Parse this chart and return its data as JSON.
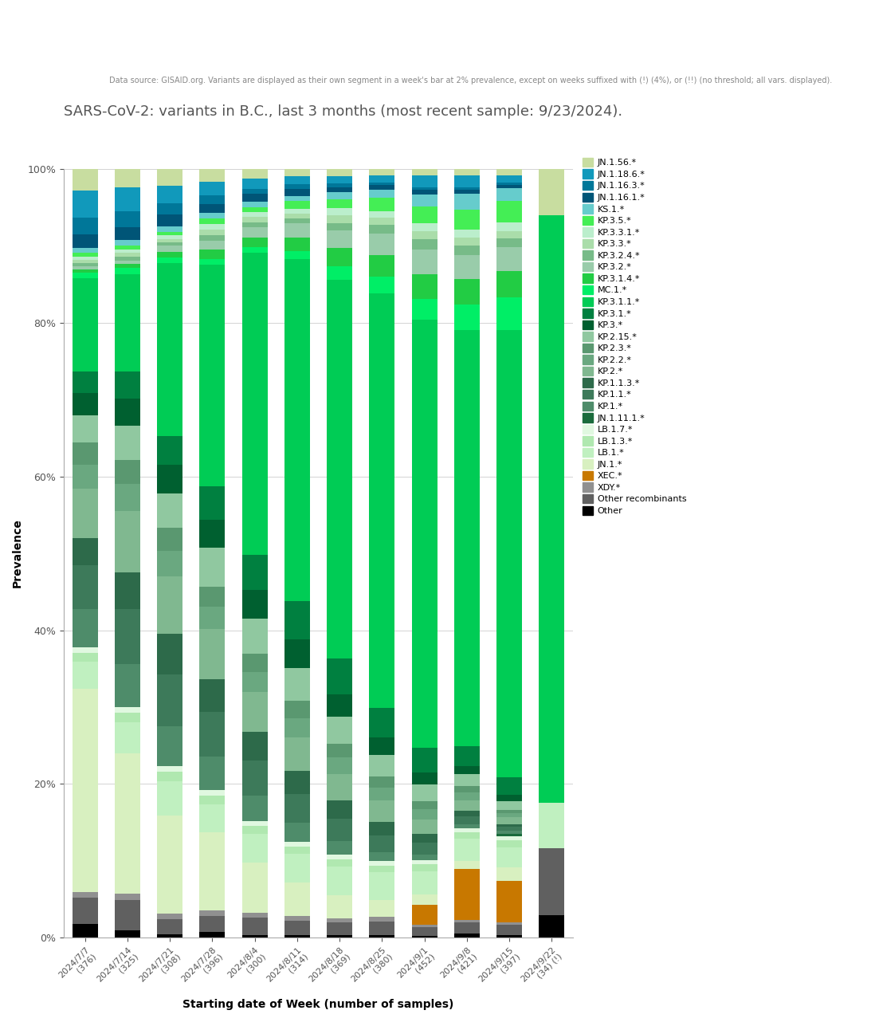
{
  "title": "SARS-CoV-2: variants in B.C., last 3 months (most recent sample: 9/23/2024).",
  "subtitle": "Data source: GISAID.org. Variants are displayed as their own segment in a week's bar at 2% prevalence, except on weeks suffixed with (!) (4%), or (!!) (no threshold; all vars. displayed).",
  "xlabel": "Starting date of Week (number of samples)",
  "ylabel": "Prevalence",
  "weeks": [
    "2024/7/7\n(376)",
    "2024/7/14\n(325)",
    "2024/7/21\n(308)",
    "2024/7/28\n(396)",
    "2024/8/4\n(300)",
    "2024/8/11\n(314)",
    "2024/8/18\n(369)",
    "2024/8/25\n(380)",
    "2024/9/1\n(452)",
    "2024/9/8\n(421)",
    "2024/9/15\n(397)",
    "2024/9/22\n(34) (!)"
  ],
  "variants_bottom_to_top": [
    "Other",
    "Other recombinants",
    "XDY.*",
    "XEC.*",
    "JN.1.*",
    "LB.1.*",
    "LB.1.3.*",
    "LB.1.7.*",
    "JN.1.11.1.*",
    "KP.1.*",
    "KP.1.1.*",
    "KP.1.1.3.*",
    "KP.2.*",
    "KP.2.2.*",
    "KP.2.3.*",
    "KP.2.15.*",
    "KP.3.*",
    "KP.3.1.*",
    "KP.3.1.1.*",
    "MC.1.*",
    "KP.3.1.4.*",
    "KP.3.2.*",
    "KP.3.2.4.*",
    "KP.3.3.*",
    "KP.3.3.1.*",
    "KP.3.5.*",
    "KS.1.*",
    "JN.1.16.1.*",
    "JN.1.16.3.*",
    "JN.1.18.6.*",
    "JN.1.56.*"
  ],
  "colors": {
    "Other": "#000000",
    "Other recombinants": "#606060",
    "XDY.*": "#909090",
    "XEC.*": "#c87800",
    "JN.1.*": "#d8f0c0",
    "LB.1.*": "#c0f0c0",
    "LB.1.3.*": "#b0e8b0",
    "LB.1.7.*": "#e0f8e0",
    "JN.1.11.1.*": "#1a6b3c",
    "KP.1.*": "#4e8c6a",
    "KP.1.1.*": "#3d7a5a",
    "KP.1.1.3.*": "#2d6a4a",
    "KP.2.*": "#80b890",
    "KP.2.2.*": "#6aa880",
    "KP.2.3.*": "#5a9870",
    "KP.2.15.*": "#90c8a0",
    "KP.3.*": "#006030",
    "KP.3.1.*": "#008040",
    "KP.3.1.1.*": "#00cc55",
    "MC.1.*": "#00ee66",
    "KP.3.1.4.*": "#22cc44",
    "KP.3.2.*": "#99ccaa",
    "KP.3.2.4.*": "#77bb88",
    "KP.3.3.*": "#aaddaa",
    "KP.3.3.1.*": "#bbeecc",
    "KP.3.5.*": "#44ee55",
    "KS.1.*": "#66cccc",
    "JN.1.16.1.*": "#005577",
    "JN.1.16.3.*": "#007799",
    "JN.1.18.6.*": "#1199bb",
    "JN.1.56.*": "#c8dda0"
  },
  "prevalence": {
    "Other": [
      1.3,
      0.6,
      0.3,
      0.5,
      0.3,
      0.3,
      0.3,
      0.3,
      0.2,
      0.5,
      0.3,
      2.9
    ],
    "Other recombinants": [
      2.4,
      2.5,
      1.3,
      1.5,
      1.7,
      1.5,
      1.4,
      1.6,
      1.1,
      1.4,
      1.2,
      8.8
    ],
    "XDY.*": [
      0.5,
      0.5,
      0.5,
      0.5,
      0.5,
      0.5,
      0.5,
      0.5,
      0.3,
      0.3,
      0.3,
      0.0
    ],
    "XEC.*": [
      0.0,
      0.0,
      0.0,
      0.0,
      0.0,
      0.0,
      0.0,
      0.0,
      2.4,
      6.4,
      4.8,
      0.0
    ],
    "JN.1.*": [
      18.5,
      11.5,
      8.5,
      7.0,
      5.0,
      3.5,
      2.5,
      2.0,
      1.3,
      1.0,
      1.5,
      0.0
    ],
    "LB.1.*": [
      2.5,
      2.5,
      3.0,
      2.5,
      2.8,
      3.0,
      3.2,
      3.2,
      2.8,
      2.8,
      2.3,
      5.9
    ],
    "LB.1.3.*": [
      0.8,
      0.8,
      0.8,
      0.8,
      0.8,
      0.8,
      0.8,
      0.8,
      0.8,
      0.8,
      0.8,
      0.0
    ],
    "LB.1.7.*": [
      0.5,
      0.5,
      0.5,
      0.5,
      0.5,
      0.5,
      0.5,
      0.5,
      0.5,
      0.5,
      0.5,
      0.0
    ],
    "JN.1.11.1.*": [
      0.0,
      0.0,
      0.0,
      0.0,
      0.0,
      0.0,
      0.0,
      0.0,
      0.0,
      0.0,
      0.3,
      0.0
    ],
    "KP.1.*": [
      3.5,
      3.5,
      3.5,
      3.0,
      2.5,
      2.0,
      1.5,
      1.0,
      0.7,
      0.5,
      0.3,
      0.0
    ],
    "KP.1.1.*": [
      4.0,
      4.5,
      4.5,
      4.0,
      3.5,
      3.0,
      2.5,
      2.0,
      1.5,
      1.0,
      0.5,
      0.0
    ],
    "KP.1.1.3.*": [
      2.5,
      3.0,
      3.5,
      3.0,
      2.8,
      2.5,
      2.0,
      1.5,
      1.0,
      0.7,
      0.3,
      0.0
    ],
    "KP.2.*": [
      4.5,
      5.0,
      5.0,
      4.5,
      4.0,
      3.5,
      3.0,
      2.5,
      1.8,
      1.3,
      0.8,
      0.0
    ],
    "KP.2.2.*": [
      2.2,
      2.2,
      2.2,
      2.0,
      2.0,
      2.0,
      1.8,
      1.5,
      1.2,
      1.0,
      0.5,
      0.0
    ],
    "KP.2.3.*": [
      2.0,
      2.0,
      2.0,
      1.8,
      1.8,
      1.8,
      1.5,
      1.3,
      1.0,
      0.8,
      0.3,
      0.0
    ],
    "KP.2.15.*": [
      2.5,
      2.8,
      3.0,
      3.5,
      3.5,
      3.5,
      3.0,
      2.5,
      2.0,
      1.5,
      1.0,
      0.0
    ],
    "KP.3.*": [
      2.0,
      2.2,
      2.5,
      2.5,
      2.8,
      3.0,
      2.5,
      2.0,
      1.5,
      1.0,
      0.8,
      0.0
    ],
    "KP.3.1.*": [
      2.0,
      2.2,
      2.5,
      3.0,
      3.5,
      4.0,
      4.0,
      3.5,
      3.0,
      2.5,
      2.0,
      0.0
    ],
    "KP.3.1.1.*": [
      8.5,
      8.0,
      15.0,
      20.0,
      30.0,
      36.0,
      42.0,
      48.0,
      52.0,
      52.0,
      51.5,
      76.5
    ],
    "MC.1.*": [
      0.5,
      0.5,
      0.5,
      0.5,
      0.5,
      0.8,
      1.5,
      2.0,
      2.5,
      3.2,
      3.8,
      0.0
    ],
    "KP.3.1.4.*": [
      0.3,
      0.3,
      0.5,
      0.8,
      1.0,
      1.5,
      2.0,
      2.5,
      3.0,
      3.2,
      3.0,
      0.0
    ],
    "KP.3.2.*": [
      0.3,
      0.3,
      0.5,
      0.8,
      1.0,
      1.5,
      2.0,
      2.5,
      3.0,
      3.0,
      2.8,
      0.0
    ],
    "KP.3.2.4.*": [
      0.3,
      0.3,
      0.3,
      0.5,
      0.5,
      0.5,
      0.8,
      1.0,
      1.2,
      1.2,
      1.0,
      0.0
    ],
    "KP.3.3.*": [
      0.3,
      0.3,
      0.3,
      0.5,
      0.5,
      0.5,
      0.8,
      0.8,
      1.0,
      1.0,
      0.8,
      0.0
    ],
    "KP.3.3.1.*": [
      0.3,
      0.3,
      0.3,
      0.5,
      0.5,
      0.5,
      0.8,
      0.8,
      1.0,
      1.0,
      1.0,
      0.0
    ],
    "KP.3.5.*": [
      0.3,
      0.3,
      0.3,
      0.5,
      0.5,
      0.8,
      1.0,
      1.5,
      2.0,
      2.5,
      2.5,
      0.0
    ],
    "KS.1.*": [
      0.5,
      0.5,
      0.5,
      0.5,
      0.5,
      0.5,
      0.8,
      1.0,
      1.5,
      2.0,
      1.5,
      0.0
    ],
    "JN.1.16.1.*": [
      1.2,
      1.0,
      1.0,
      0.8,
      0.8,
      0.8,
      0.5,
      0.5,
      0.5,
      0.5,
      0.3,
      0.0
    ],
    "JN.1.16.3.*": [
      1.5,
      1.3,
      1.0,
      0.8,
      0.5,
      0.5,
      0.5,
      0.3,
      0.3,
      0.3,
      0.3,
      0.0
    ],
    "JN.1.18.6.*": [
      2.5,
      2.0,
      1.5,
      1.2,
      1.0,
      0.8,
      0.8,
      0.8,
      1.5,
      1.5,
      0.8,
      0.0
    ],
    "JN.1.56.*": [
      2.0,
      1.5,
      1.5,
      1.2,
      1.0,
      0.8,
      0.8,
      0.8,
      0.8,
      0.8,
      0.8,
      6.1
    ]
  }
}
